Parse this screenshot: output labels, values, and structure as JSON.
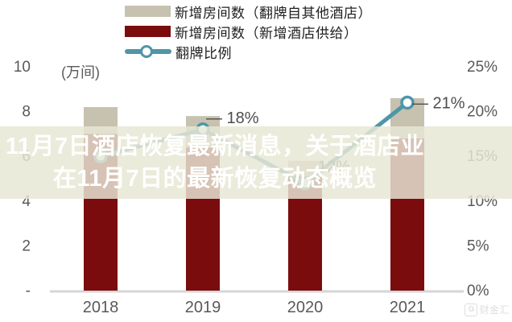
{
  "headline": {
    "line1": "11月7日酒店恢复最新消息，关于酒店业",
    "line2": "在11月7日的最新恢复动态概览"
  },
  "legend": {
    "items": [
      {
        "label": "新增房间数（翻牌自其他酒店）",
        "color": "#c6c2af",
        "type": "bar"
      },
      {
        "label": "新增房间数（新增酒店供给）",
        "color": "#7a0c0e",
        "type": "bar"
      },
      {
        "label": "翻牌比例",
        "color": "#4e96a8",
        "type": "line"
      }
    ]
  },
  "axes": {
    "left_unit": "(万间)",
    "left_ticks": [
      {
        "label": "10",
        "value": 10
      },
      {
        "label": "8",
        "value": 8
      },
      {
        "label": "6",
        "value": 6
      },
      {
        "label": "4",
        "value": 4
      },
      {
        "label": "2",
        "value": 2
      },
      {
        "label": "-",
        "value": 0
      }
    ],
    "right_ticks": [
      {
        "label": "25%",
        "value": 25
      },
      {
        "label": "20%",
        "value": 20
      },
      {
        "label": "15%",
        "value": 15
      },
      {
        "label": "10%",
        "value": 10
      },
      {
        "label": "5%",
        "value": 5
      },
      {
        "label": "0%",
        "value": 0
      }
    ]
  },
  "chart_data": {
    "type": "bar+line",
    "categories": [
      "2018",
      "2019",
      "2020",
      "2021"
    ],
    "bar_series": [
      {
        "name": "新增房间数（翻牌自其他酒店）",
        "color": "#c6c2af",
        "stack_position": "top",
        "values_wan": [
          1.2,
          1.4,
          0.7,
          1.8
        ]
      },
      {
        "name": "新增房间数（新增酒店供给）",
        "color": "#7a0c0e",
        "stack_position": "bottom",
        "values_wan": [
          7.0,
          6.4,
          5.1,
          6.8
        ]
      }
    ],
    "bar_totals_wan": [
      8.2,
      7.8,
      5.8,
      8.6
    ],
    "line_series": {
      "name": "翻牌比例",
      "color": "#4e96a8",
      "axis": "right",
      "values_pct": [
        15,
        18,
        12,
        21
      ],
      "point_labels": [
        "",
        "18%",
        "12%",
        "21%"
      ]
    },
    "left_axis": {
      "unit": "万间",
      "min": 0,
      "max": 10
    },
    "right_axis": {
      "unit": "%",
      "min": 0,
      "max": 25
    },
    "grid": false,
    "legend_position": "top-left"
  },
  "watermark": {
    "logo_letter": "G",
    "text": "财金汇"
  }
}
